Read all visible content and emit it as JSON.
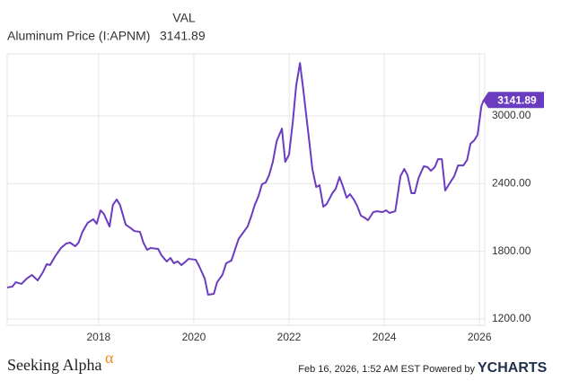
{
  "chart_data": {
    "type": "line",
    "value_header": "VAL",
    "series": [
      {
        "name": "Aluminum Price (I:APNM)",
        "color": "#6a3cc0",
        "values": [
          1479,
          1487,
          1526,
          1511,
          1558,
          1590,
          1542,
          1614,
          1686,
          1678,
          1757,
          1829,
          1869,
          1877,
          1845,
          1877,
          1972,
          2052,
          2084,
          2044,
          2163,
          2132,
          2020,
          2211,
          2259,
          2211,
          2036,
          2004,
          1980,
          1972,
          1877,
          1813,
          1829,
          1821,
          1765,
          1710,
          1741,
          1694,
          1710,
          1678,
          1702,
          1733,
          1725,
          1670,
          1558,
          1415,
          1423,
          1526,
          1590,
          1694,
          1718,
          1821,
          1909,
          1956,
          2020,
          2116,
          2211,
          2291,
          2394,
          2410,
          2474,
          2593,
          2776,
          2888,
          2593,
          2657,
          2952,
          3270,
          3469,
          3230,
          2792,
          2530,
          2370,
          2386,
          2195,
          2219,
          2315,
          2354,
          2458,
          2378,
          2275,
          2307,
          2259,
          2203,
          2116,
          2100,
          2076,
          2148,
          2155,
          2148,
          2163,
          2140,
          2155,
          2235,
          2466,
          2530,
          2474,
          2315,
          2315,
          2450,
          2554,
          2546,
          2514,
          2546,
          2617,
          2617,
          2339,
          2394,
          2466,
          2561,
          2561,
          2609,
          2753,
          2784,
          2832,
          3087,
          3141.89
        ]
      }
    ],
    "x": [
      2016.08,
      2016.19,
      2016.26,
      2016.38,
      2016.49,
      2016.6,
      2016.72,
      2016.83,
      2016.91,
      2016.98,
      2017.09,
      2017.21,
      2017.32,
      2017.4,
      2017.51,
      2017.58,
      2017.66,
      2017.77,
      2017.89,
      2017.96,
      2018.04,
      2018.11,
      2018.23,
      2018.3,
      2018.38,
      2018.45,
      2018.57,
      2018.68,
      2018.75,
      2018.87,
      2018.94,
      2019.02,
      2019.09,
      2019.25,
      2019.32,
      2019.43,
      2019.51,
      2019.58,
      2019.66,
      2019.74,
      2019.81,
      2019.89,
      2020.04,
      2020.11,
      2020.23,
      2020.3,
      2020.42,
      2020.49,
      2020.6,
      2020.68,
      2020.79,
      2020.87,
      2020.94,
      2021.02,
      2021.13,
      2021.21,
      2021.28,
      2021.36,
      2021.43,
      2021.51,
      2021.58,
      2021.66,
      2021.74,
      2021.85,
      2021.92,
      2022.0,
      2022.08,
      2022.15,
      2022.23,
      2022.3,
      2022.42,
      2022.49,
      2022.57,
      2022.64,
      2022.72,
      2022.79,
      2022.91,
      2022.98,
      2023.06,
      2023.13,
      2023.21,
      2023.28,
      2023.36,
      2023.43,
      2023.51,
      2023.58,
      2023.66,
      2023.77,
      2023.85,
      2023.96,
      2024.04,
      2024.11,
      2024.23,
      2024.26,
      2024.34,
      2024.42,
      2024.49,
      2024.57,
      2024.64,
      2024.72,
      2024.83,
      2024.91,
      2024.98,
      2025.06,
      2025.13,
      2025.21,
      2025.28,
      2025.36,
      2025.47,
      2025.55,
      2025.66,
      2025.74,
      2025.81,
      2025.89,
      2025.96,
      2026.04,
      2026.09
    ],
    "xlim": [
      2016.08,
      2026.11
    ],
    "xticks": [
      2018,
      2020,
      2022,
      2024,
      2026
    ],
    "ylim": [
      1144,
      3550
    ],
    "yticks": [
      {
        "value": 1200,
        "label": "1200.00"
      },
      {
        "value": 1800,
        "label": "1800.00"
      },
      {
        "value": 2400,
        "label": "2400.00"
      },
      {
        "value": 3000,
        "label": "3000.00"
      }
    ],
    "grid": true
  },
  "footer": {
    "brand": "Seeking Alpha",
    "brand_symbol": "α",
    "timestamp": "Feb 16, 2026, 1:52 AM EST Powered by",
    "source": "YCHARTS"
  }
}
